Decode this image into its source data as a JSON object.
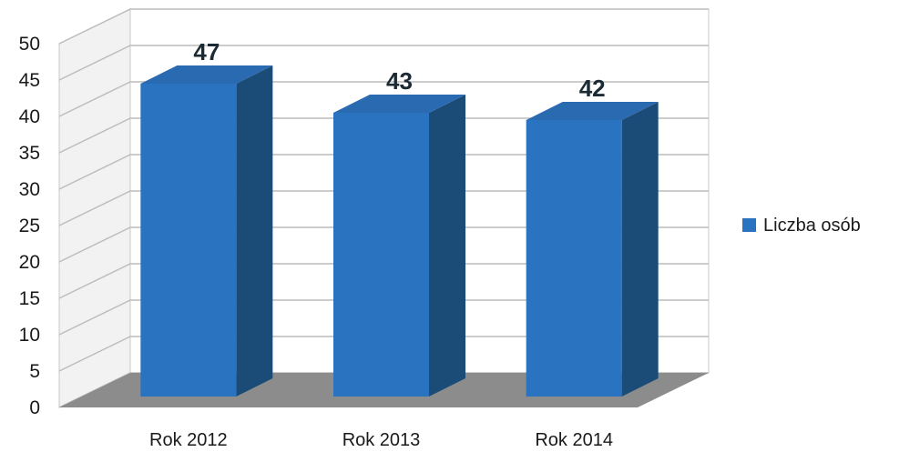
{
  "chart_data": {
    "type": "bar",
    "categories": [
      "Rok 2012",
      "Rok 2013",
      "Rok 2014"
    ],
    "series": [
      {
        "name": "Liczba osób",
        "values": [
          47,
          43,
          42
        ]
      }
    ],
    "ylim": [
      0,
      50
    ],
    "yticks": [
      0,
      5,
      10,
      15,
      20,
      25,
      30,
      35,
      40,
      45,
      50
    ],
    "grid": true,
    "three_d": true,
    "legend_position": "right",
    "colors": {
      "bar_front": "#2a73c0",
      "bar_side": "#1b4c78",
      "bar_top": "#2a6ab0",
      "floor": "#8c8c8c",
      "wall": "#f2f2f2",
      "grid": "#bcbcbc",
      "legend_marker": "#2a73c0"
    }
  }
}
